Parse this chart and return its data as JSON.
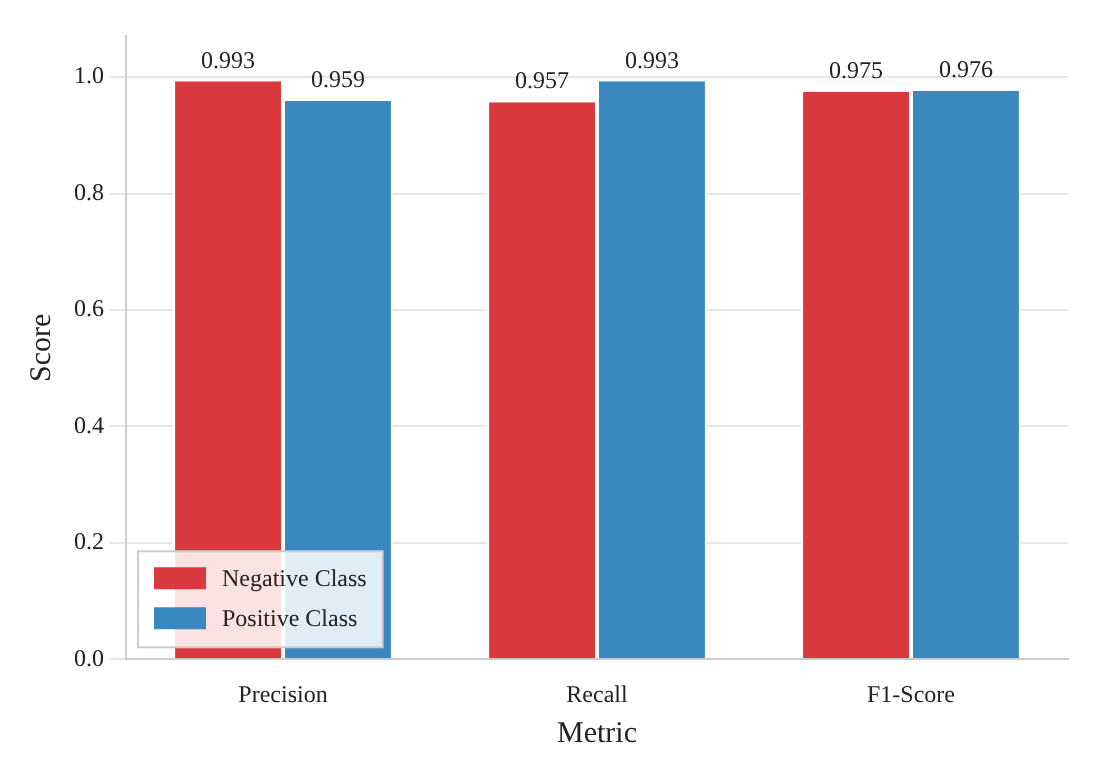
{
  "chart_data": {
    "type": "bar",
    "xlabel": "Metric",
    "ylabel": "Score",
    "categories": [
      "Precision",
      "Recall",
      "F1-Score"
    ],
    "series": [
      {
        "name": "Negative Class",
        "color": "#d9393d",
        "values": [
          0.993,
          0.957,
          0.975
        ]
      },
      {
        "name": "Positive Class",
        "color": "#3a88c0",
        "values": [
          0.959,
          0.993,
          0.976
        ]
      }
    ],
    "ylim": [
      0,
      1.07
    ],
    "yticks": [
      {
        "value": 0,
        "label": "0.0"
      },
      {
        "value": 0.2,
        "label": "0.2"
      },
      {
        "value": 0.4,
        "label": "0.4"
      },
      {
        "value": 0.6,
        "label": "0.6"
      },
      {
        "value": 0.8,
        "label": "0.8"
      },
      {
        "value": 1,
        "label": "1.0"
      }
    ],
    "grid": "y",
    "legend": "bottom left",
    "data_labels": true
  }
}
